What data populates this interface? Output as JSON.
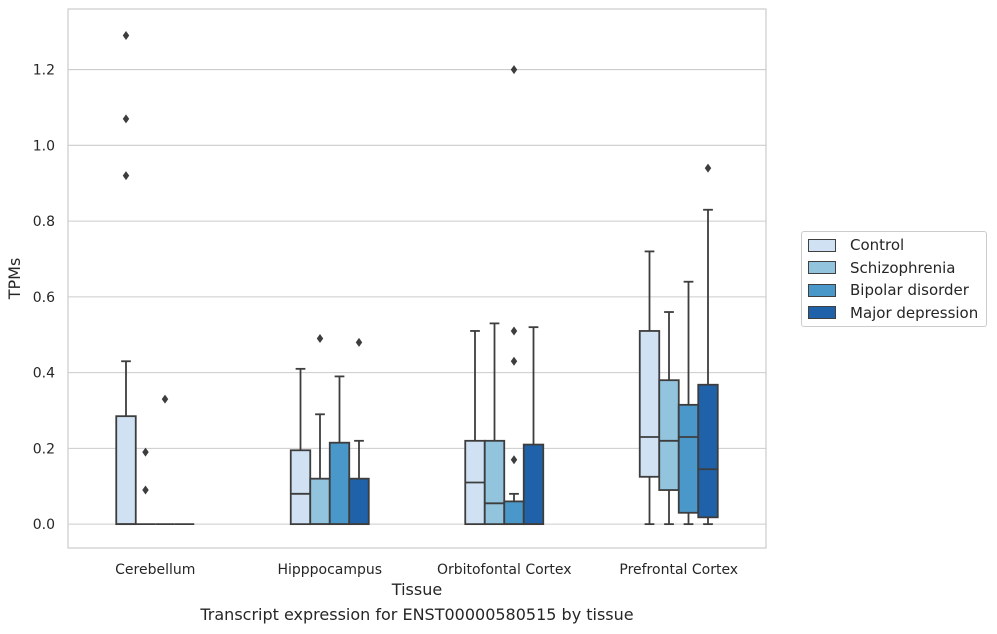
{
  "caption": "Transcript expression for ENST00000580515 by tissue",
  "chart_data": {
    "type": "box",
    "xlabel": "Tissue",
    "ylabel": "TPMs",
    "ylim": [
      -0.063,
      1.36
    ],
    "yticks": [
      "0.0",
      "0.2",
      "0.4",
      "0.6",
      "0.8",
      "1.0",
      "1.2"
    ],
    "grid": "horizontal",
    "legend_position": "right",
    "categories": [
      "Cerebellum",
      "Hipppocampus",
      "Orbitofontal Cortex",
      "Prefrontal Cortex"
    ],
    "series": [
      {
        "name": "Control",
        "color": "#cfe1f2",
        "boxes": [
          {
            "q1": 0.0,
            "median": 0.0,
            "q3": 0.285,
            "whisker_low": 0.0,
            "whisker_high": 0.43,
            "outliers": [
              0.92,
              1.07,
              1.29
            ]
          },
          {
            "q1": 0.0,
            "median": 0.08,
            "q3": 0.195,
            "whisker_low": 0.0,
            "whisker_high": 0.41,
            "outliers": []
          },
          {
            "q1": 0.0,
            "median": 0.11,
            "q3": 0.22,
            "whisker_low": 0.0,
            "whisker_high": 0.51,
            "outliers": []
          },
          {
            "q1": 0.125,
            "median": 0.23,
            "q3": 0.51,
            "whisker_low": 0.0,
            "whisker_high": 0.72,
            "outliers": []
          }
        ]
      },
      {
        "name": "Schizophrenia",
        "color": "#93c4de",
        "boxes": [
          {
            "q1": 0.0,
            "median": 0.0,
            "q3": 0.0,
            "whisker_low": 0.0,
            "whisker_high": 0.0,
            "outliers": [
              0.09,
              0.19
            ]
          },
          {
            "q1": 0.0,
            "median": 0.0,
            "q3": 0.12,
            "whisker_low": 0.0,
            "whisker_high": 0.29,
            "outliers": [
              0.49
            ]
          },
          {
            "q1": 0.0,
            "median": 0.055,
            "q3": 0.22,
            "whisker_low": 0.0,
            "whisker_high": 0.53,
            "outliers": []
          },
          {
            "q1": 0.09,
            "median": 0.22,
            "q3": 0.38,
            "whisker_low": 0.0,
            "whisker_high": 0.56,
            "outliers": []
          }
        ]
      },
      {
        "name": "Bipolar disorder",
        "color": "#4a98c9",
        "boxes": [
          {
            "q1": 0.0,
            "median": 0.0,
            "q3": 0.0,
            "whisker_low": 0.0,
            "whisker_high": 0.0,
            "outliers": [
              0.33
            ]
          },
          {
            "q1": 0.0,
            "median": 0.0,
            "q3": 0.215,
            "whisker_low": 0.0,
            "whisker_high": 0.39,
            "outliers": []
          },
          {
            "q1": 0.0,
            "median": 0.0,
            "q3": 0.06,
            "whisker_low": 0.0,
            "whisker_high": 0.08,
            "outliers": [
              0.17,
              0.43,
              0.51,
              1.2
            ]
          },
          {
            "q1": 0.03,
            "median": 0.23,
            "q3": 0.315,
            "whisker_low": 0.0,
            "whisker_high": 0.64,
            "outliers": []
          }
        ]
      },
      {
        "name": "Major depression",
        "color": "#2062a9",
        "boxes": [
          {
            "q1": 0.0,
            "median": 0.0,
            "q3": 0.0,
            "whisker_low": 0.0,
            "whisker_high": 0.0,
            "outliers": []
          },
          {
            "q1": 0.0,
            "median": 0.0,
            "q3": 0.12,
            "whisker_low": 0.0,
            "whisker_high": 0.22,
            "outliers": [
              0.48
            ]
          },
          {
            "q1": 0.0,
            "median": 0.0,
            "q3": 0.21,
            "whisker_low": 0.0,
            "whisker_high": 0.52,
            "outliers": []
          },
          {
            "q1": 0.018,
            "median": 0.145,
            "q3": 0.368,
            "whisker_low": 0.0,
            "whisker_high": 0.83,
            "outliers": [
              0.94
            ]
          }
        ]
      }
    ]
  }
}
